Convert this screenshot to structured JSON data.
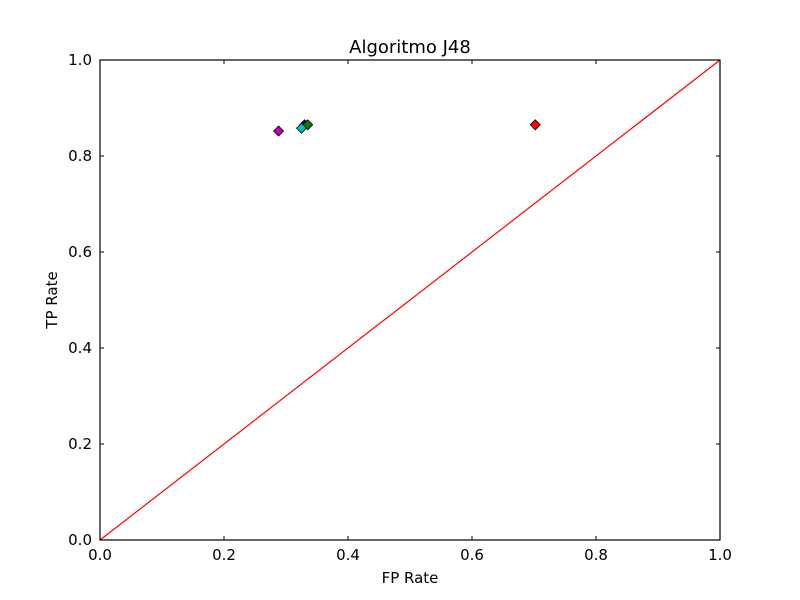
{
  "chart_data": {
    "type": "scatter",
    "title": "Algoritmo J48",
    "xlabel": "FP Rate",
    "ylabel": "TP Rate",
    "xlim": [
      0.0,
      1.0
    ],
    "ylim": [
      0.0,
      1.0
    ],
    "xticks": [
      "0.0",
      "0.2",
      "0.4",
      "0.6",
      "0.8",
      "1.0"
    ],
    "yticks": [
      "0.0",
      "0.2",
      "0.4",
      "0.6",
      "0.8",
      "1.0"
    ],
    "grid": false,
    "reference_line": {
      "x": [
        0.0,
        1.0
      ],
      "y": [
        0.0,
        1.0
      ],
      "color": "#ff0000"
    },
    "series": [
      {
        "x": 0.33,
        "y": 0.865,
        "color": "#0000ff",
        "marker": "diamond"
      },
      {
        "x": 0.335,
        "y": 0.865,
        "color": "#008000",
        "marker": "diamond"
      },
      {
        "x": 0.325,
        "y": 0.858,
        "color": "#00bfbf",
        "marker": "diamond"
      },
      {
        "x": 0.288,
        "y": 0.852,
        "color": "#bf00bf",
        "marker": "diamond"
      },
      {
        "x": 0.702,
        "y": 0.865,
        "color": "#ff0000",
        "marker": "diamond"
      }
    ]
  }
}
